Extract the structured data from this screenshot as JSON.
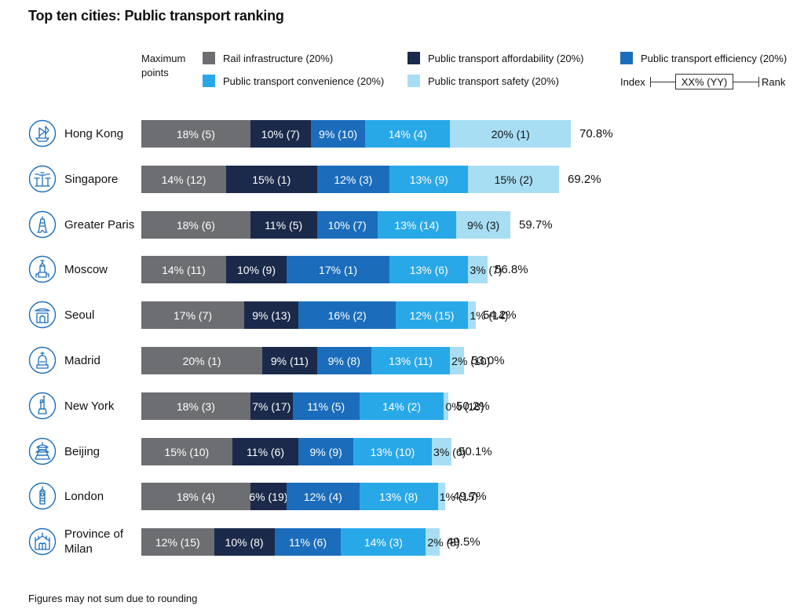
{
  "title": "Top ten cities: Public transport ranking",
  "legend": {
    "max_points_label": "Maximum points",
    "items": [
      {
        "label": "Rail infrastructure (20%)",
        "color": "#6d6e71"
      },
      {
        "label": "Public transport affordability (20%)",
        "color": "#1b2a4a"
      },
      {
        "label": "Public transport efficiency (20%)",
        "color": "#1b6dbc"
      },
      {
        "label": "Public transport convenience (20%)",
        "color": "#29a8e8"
      },
      {
        "label": "Public transport safety (20%)",
        "color": "#a8def4"
      }
    ],
    "key": {
      "left": "Index",
      "box": "XX% (YY)",
      "right": "Rank"
    }
  },
  "footnote": "Figures may not sum due to rounding",
  "chart_data": {
    "type": "bar",
    "orientation": "horizontal",
    "stacked": true,
    "categories": [
      "Hong Kong",
      "Singapore",
      "Greater Paris",
      "Moscow",
      "Seoul",
      "Madrid",
      "New York",
      "Beijing",
      "London",
      "Province of Milan"
    ],
    "icons": [
      "junk-boat-icon",
      "supertree-icon",
      "eiffel-tower-icon",
      "kremlin-tower-icon",
      "seoul-gate-icon",
      "madrid-statue-icon",
      "statue-of-liberty-icon",
      "temple-of-heaven-icon",
      "big-ben-icon",
      "milan-cathedral-icon"
    ],
    "totals": [
      "70.8%",
      "69.2%",
      "59.7%",
      "56.8%",
      "54.2%",
      "53.0%",
      "50.2%",
      "50.1%",
      "49.7%",
      "49.5%"
    ],
    "series": [
      {
        "name": "Rail infrastructure (20%)",
        "values": [
          18,
          14,
          18,
          14,
          17,
          20,
          18,
          15,
          18,
          12
        ],
        "labels": [
          "18% (5)",
          "14% (12)",
          "18% (6)",
          "14% (11)",
          "17% (7)",
          "20% (1)",
          "18% (3)",
          "15% (10)",
          "18% (4)",
          "12% (15)"
        ]
      },
      {
        "name": "Public transport affordability (20%)",
        "values": [
          10,
          15,
          11,
          10,
          9,
          9,
          7,
          11,
          6,
          10
        ],
        "labels": [
          "10% (7)",
          "15% (1)",
          "11% (5)",
          "10% (9)",
          "9% (13)",
          "9% (11)",
          "7% (17)",
          "11% (6)",
          "6% (19)",
          "10% (8)"
        ]
      },
      {
        "name": "Public transport efficiency (20%)",
        "values": [
          9,
          12,
          10,
          17,
          16,
          9,
          11,
          9,
          12,
          11
        ],
        "labels": [
          "9% (10)",
          "12% (3)",
          "10% (7)",
          "17% (1)",
          "16% (2)",
          "9% (8)",
          "11% (5)",
          "9% (9)",
          "12% (4)",
          "11% (6)"
        ]
      },
      {
        "name": "Public transport convenience (20%)",
        "values": [
          14,
          13,
          13,
          13,
          12,
          13,
          14,
          13,
          13,
          14
        ],
        "labels": [
          "14% (4)",
          "13% (9)",
          "13% (14)",
          "13% (6)",
          "12% (15)",
          "13% (11)",
          "14% (2)",
          "13% (10)",
          "13% (8)",
          "14% (3)"
        ]
      },
      {
        "name": "Public transport safety (20%)",
        "values": [
          20,
          15,
          9,
          3,
          1,
          2,
          0,
          3,
          1,
          2
        ],
        "labels": [
          "20% (1)",
          "15% (2)",
          "9% (3)",
          "3% (7)",
          "1% (14)",
          "2% (10)",
          "0% (18)",
          "3% (6)",
          "1% (15)",
          "2% (8)"
        ]
      }
    ]
  }
}
